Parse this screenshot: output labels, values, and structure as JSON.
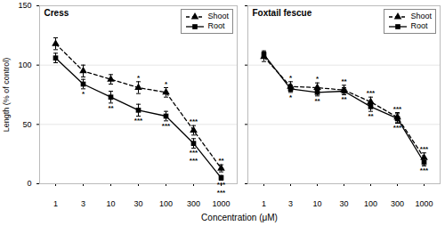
{
  "chart_data": [
    {
      "type": "line",
      "title": "Cress",
      "ylabel": "Length (% of control)",
      "categories": [
        "1",
        "3",
        "10",
        "30",
        "100",
        "300",
        "1000"
      ],
      "series": [
        {
          "name": "Shoot",
          "color": "black",
          "marker": "triangle",
          "line_style": "dashed",
          "values": [
            118,
            95,
            88,
            81,
            77,
            45,
            13
          ],
          "error": [
            5,
            5,
            4,
            5,
            4,
            4,
            3
          ]
        },
        {
          "name": "Root",
          "color": "black",
          "marker": "square",
          "line_style": "solid",
          "values": [
            106,
            84,
            73,
            62,
            57,
            34,
            5
          ],
          "error": [
            4,
            4,
            5,
            5,
            4,
            4,
            2
          ]
        }
      ],
      "annotations": [
        {
          "series": "Shoot",
          "x": "30",
          "text": "*"
        },
        {
          "series": "Shoot",
          "x": "100",
          "text": "*"
        },
        {
          "series": "Shoot",
          "x": "300",
          "text": "***"
        },
        {
          "series": "Shoot",
          "x": "1000",
          "text": "**"
        },
        {
          "series": "Root",
          "x": "3",
          "text": "*"
        },
        {
          "series": "Root",
          "x": "10",
          "text": "**"
        },
        {
          "series": "Root",
          "x": "30",
          "text": "***"
        },
        {
          "series": "Root",
          "x": "100",
          "text": "***"
        },
        {
          "series": "Root",
          "x": "300",
          "text": "***"
        },
        {
          "series": "Root",
          "x": "1000",
          "text": "***"
        },
        {
          "series": "Root",
          "x": "300",
          "text": "***"
        },
        {
          "series": "Root",
          "x": "1000",
          "text": "***"
        }
      ],
      "ylim": [
        0,
        150
      ],
      "yticks": [
        0,
        50,
        100,
        150
      ],
      "grid": true,
      "legend": "upper right"
    },
    {
      "type": "line",
      "title": "Foxtail fescue",
      "categories": [
        "1",
        "3",
        "10",
        "30",
        "100",
        "300",
        "1000"
      ],
      "series": [
        {
          "name": "Shoot",
          "color": "black",
          "marker": "triangle",
          "line_style": "dashed",
          "values": [
            107,
            82,
            81,
            79,
            69,
            56,
            22
          ],
          "error": [
            4,
            4,
            4,
            4,
            4,
            4,
            4
          ]
        },
        {
          "name": "Root",
          "color": "black",
          "marker": "square",
          "line_style": "solid",
          "values": [
            109,
            80,
            77,
            78,
            65,
            55,
            18
          ],
          "error": [
            3,
            3,
            3,
            3,
            4,
            4,
            3
          ]
        }
      ],
      "annotations": [
        {
          "series": "Shoot",
          "x": "3",
          "text": "*"
        },
        {
          "series": "Shoot",
          "x": "10",
          "text": "*"
        },
        {
          "series": "Shoot",
          "x": "30",
          "text": "**"
        },
        {
          "series": "Shoot",
          "x": "100",
          "text": "***"
        },
        {
          "series": "Shoot",
          "x": "300",
          "text": "***"
        },
        {
          "series": "Shoot",
          "x": "1000",
          "text": "***"
        },
        {
          "series": "Root",
          "x": "3",
          "text": "*"
        },
        {
          "series": "Root",
          "x": "10",
          "text": "**"
        },
        {
          "series": "Root",
          "x": "30",
          "text": "**"
        },
        {
          "series": "Root",
          "x": "100",
          "text": "**"
        },
        {
          "series": "Root",
          "x": "300",
          "text": "***"
        },
        {
          "series": "Root",
          "x": "1000",
          "text": "***"
        }
      ],
      "ylim": [
        0,
        150
      ],
      "yticks": [
        0,
        50,
        100,
        150
      ],
      "grid": true,
      "legend": "upper right",
      "tick_labels": "x"
    }
  ],
  "xlabel": "Concentration (μM)"
}
